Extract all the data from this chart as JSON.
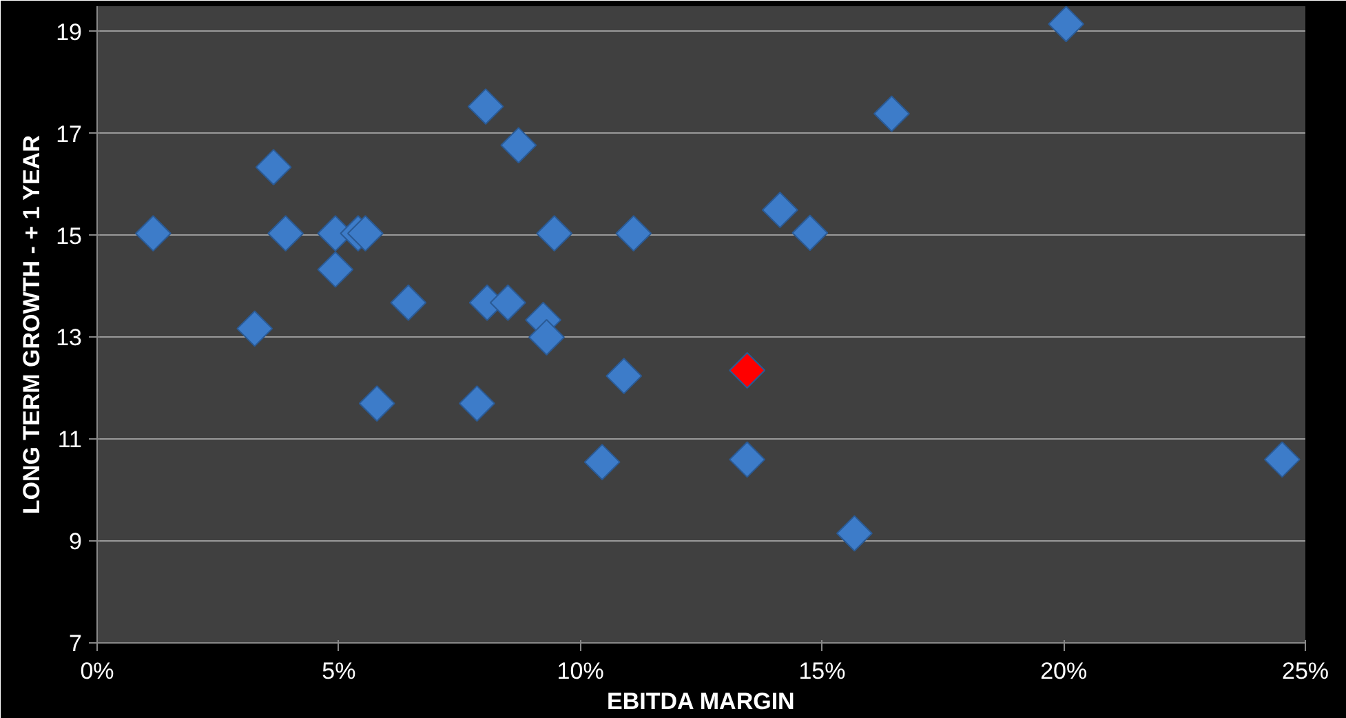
{
  "chart_data": {
    "type": "scatter",
    "xlabel": "EBITDA MARGIN",
    "ylabel": "LONG TERM GROWTH - + 1 YEAR",
    "x": [
      1.16,
      3.26,
      3.65,
      3.9,
      4.93,
      4.93,
      5.4,
      5.55,
      5.79,
      6.44,
      7.86,
      8.04,
      8.07,
      8.5,
      8.72,
      9.23,
      9.3,
      9.46,
      10.45,
      10.9,
      11.1,
      13.45,
      13.45,
      14.13,
      14.75,
      15.67,
      16.44,
      20.05,
      24.52
    ],
    "values": [
      15.04,
      13.17,
      16.34,
      15.04,
      15.04,
      14.33,
      15.04,
      15.04,
      11.7,
      13.68,
      11.7,
      17.53,
      13.68,
      13.68,
      16.77,
      13.34,
      13.0,
      15.04,
      10.55,
      12.24,
      15.04,
      10.6,
      12.35,
      15.5,
      15.05,
      9.15,
      17.39,
      19.15,
      10.6
    ],
    "colors": [
      "#3d7cc9",
      "#3d7cc9",
      "#3d7cc9",
      "#3d7cc9",
      "#3d7cc9",
      "#3d7cc9",
      "#3d7cc9",
      "#3d7cc9",
      "#3d7cc9",
      "#3d7cc9",
      "#3d7cc9",
      "#3d7cc9",
      "#3d7cc9",
      "#3d7cc9",
      "#3d7cc9",
      "#3d7cc9",
      "#3d7cc9",
      "#3d7cc9",
      "#3d7cc9",
      "#3d7cc9",
      "#3d7cc9",
      "#3d7cc9",
      "#ff0000",
      "#3d7cc9",
      "#3d7cc9",
      "#3d7cc9",
      "#3d7cc9",
      "#3d7cc9",
      "#3d7cc9"
    ],
    "xlim": [
      0,
      25
    ],
    "ylim": [
      7,
      19.5
    ],
    "xticks": [
      {
        "value": 0,
        "label": "0%"
      },
      {
        "value": 5,
        "label": "5%"
      },
      {
        "value": 10,
        "label": "10%"
      },
      {
        "value": 15,
        "label": "15%"
      },
      {
        "value": 20,
        "label": "20%"
      },
      {
        "value": 25,
        "label": "25%"
      }
    ],
    "yticks": [
      7,
      9,
      11,
      13,
      15,
      17,
      19
    ],
    "grid": "y",
    "marker": "diamond"
  }
}
